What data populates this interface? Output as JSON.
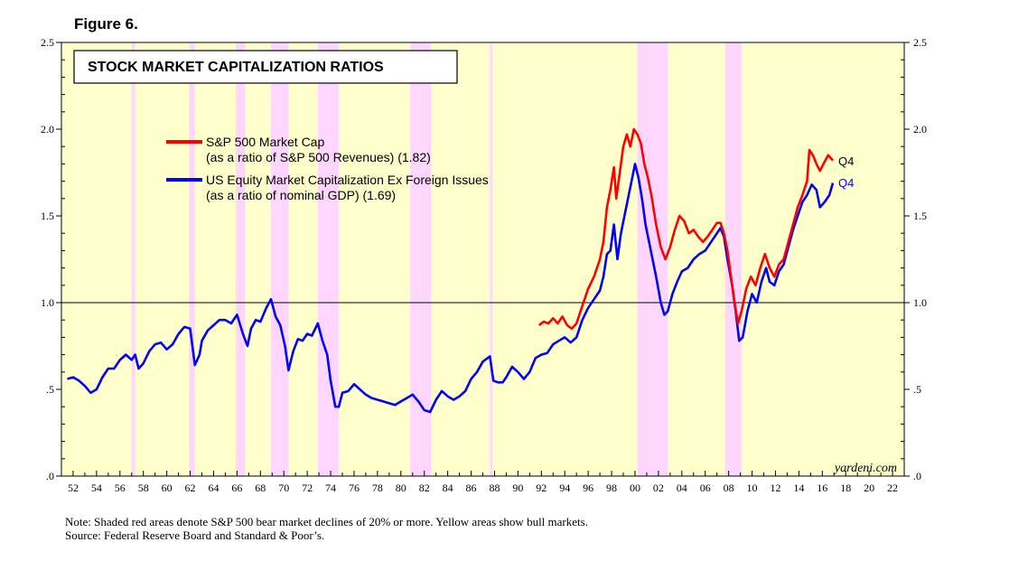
{
  "figure_label": "Figure 6.",
  "colors": {
    "background": "#ffffcc",
    "recession": "#ffd6ff",
    "sp500": "#ff0000",
    "equity": "#0000ff"
  },
  "notes": {
    "line1": "Note: Shaded red areas denote S&P 500 bear market declines of 20% or more. Yellow areas show bull markets.",
    "line2": "Source: Federal Reserve Board and Standard & Poor’s."
  },
  "chart_data": {
    "type": "line",
    "title": "STOCK MARKET CAPITALIZATION RATIOS",
    "watermark": "yardeni.com",
    "xlim": [
      1951,
      2023
    ],
    "ylim": [
      0,
      2.5
    ],
    "reference_line": 1.0,
    "y_ticks": [
      {
        "value": 0,
        "label": ".0"
      },
      {
        "value": 0.5,
        "label": ".5"
      },
      {
        "value": 1.0,
        "label": "1.0"
      },
      {
        "value": 1.5,
        "label": "1.5"
      },
      {
        "value": 2.0,
        "label": "2.0"
      },
      {
        "value": 2.5,
        "label": "2.5"
      }
    ],
    "x_tick_labels": [
      "52",
      "54",
      "56",
      "58",
      "60",
      "62",
      "64",
      "66",
      "68",
      "70",
      "72",
      "74",
      "76",
      "78",
      "80",
      "82",
      "84",
      "86",
      "88",
      "90",
      "92",
      "94",
      "96",
      "98",
      "00",
      "02",
      "04",
      "06",
      "08",
      "10",
      "12",
      "14",
      "16",
      "18",
      "20",
      "22"
    ],
    "bear_markets": [
      [
        1957.0,
        1957.3
      ],
      [
        1961.9,
        1962.4
      ],
      [
        1965.9,
        1966.7
      ],
      [
        1968.9,
        1970.4
      ],
      [
        1972.9,
        1974.7
      ],
      [
        1980.8,
        1982.6
      ],
      [
        1987.6,
        1987.8
      ],
      [
        2000.2,
        2002.8
      ],
      [
        2007.7,
        2009.1
      ]
    ],
    "legend": [
      {
        "name": "S&P 500 Market Cap",
        "detail": "(as a ratio of S&P 500 Revenues) (1.82)",
        "color": "#ff0000"
      },
      {
        "name": "US Equity Market Capitalization Ex Foreign Issues",
        "detail": "(as a ratio of nominal GDP) (1.69)",
        "color": "#0000ff"
      }
    ],
    "series": [
      {
        "name": "US Equity Market Capitalization Ex Foreign Issues",
        "end_label": "Q4",
        "color": "#0000ff",
        "points": [
          [
            1951.5,
            0.56
          ],
          [
            1952.0,
            0.57
          ],
          [
            1952.5,
            0.55
          ],
          [
            1953.0,
            0.52
          ],
          [
            1953.5,
            0.48
          ],
          [
            1954.0,
            0.5
          ],
          [
            1954.5,
            0.57
          ],
          [
            1955.0,
            0.62
          ],
          [
            1955.5,
            0.62
          ],
          [
            1956.0,
            0.67
          ],
          [
            1956.5,
            0.7
          ],
          [
            1957.0,
            0.67
          ],
          [
            1957.3,
            0.7
          ],
          [
            1957.6,
            0.62
          ],
          [
            1958.0,
            0.65
          ],
          [
            1958.5,
            0.72
          ],
          [
            1959.0,
            0.76
          ],
          [
            1959.5,
            0.77
          ],
          [
            1960.0,
            0.73
          ],
          [
            1960.5,
            0.76
          ],
          [
            1961.0,
            0.82
          ],
          [
            1961.5,
            0.86
          ],
          [
            1962.0,
            0.85
          ],
          [
            1962.4,
            0.64
          ],
          [
            1962.8,
            0.7
          ],
          [
            1963.0,
            0.78
          ],
          [
            1963.5,
            0.84
          ],
          [
            1964.0,
            0.87
          ],
          [
            1964.5,
            0.9
          ],
          [
            1965.0,
            0.9
          ],
          [
            1965.5,
            0.88
          ],
          [
            1966.0,
            0.93
          ],
          [
            1966.5,
            0.82
          ],
          [
            1966.9,
            0.75
          ],
          [
            1967.2,
            0.85
          ],
          [
            1967.6,
            0.9
          ],
          [
            1968.0,
            0.89
          ],
          [
            1968.5,
            0.97
          ],
          [
            1968.9,
            1.02
          ],
          [
            1969.3,
            0.92
          ],
          [
            1969.7,
            0.87
          ],
          [
            1970.1,
            0.75
          ],
          [
            1970.4,
            0.61
          ],
          [
            1970.8,
            0.72
          ],
          [
            1971.2,
            0.79
          ],
          [
            1971.6,
            0.78
          ],
          [
            1972.0,
            0.82
          ],
          [
            1972.4,
            0.81
          ],
          [
            1972.9,
            0.88
          ],
          [
            1973.3,
            0.78
          ],
          [
            1973.7,
            0.7
          ],
          [
            1974.0,
            0.55
          ],
          [
            1974.4,
            0.4
          ],
          [
            1974.7,
            0.4
          ],
          [
            1975.0,
            0.48
          ],
          [
            1975.5,
            0.49
          ],
          [
            1976.0,
            0.53
          ],
          [
            1976.5,
            0.5
          ],
          [
            1977.0,
            0.47
          ],
          [
            1977.5,
            0.45
          ],
          [
            1978.0,
            0.44
          ],
          [
            1978.5,
            0.43
          ],
          [
            1979.0,
            0.42
          ],
          [
            1979.5,
            0.41
          ],
          [
            1980.0,
            0.43
          ],
          [
            1980.5,
            0.45
          ],
          [
            1981.0,
            0.47
          ],
          [
            1981.5,
            0.43
          ],
          [
            1982.0,
            0.38
          ],
          [
            1982.5,
            0.37
          ],
          [
            1983.0,
            0.44
          ],
          [
            1983.5,
            0.49
          ],
          [
            1984.0,
            0.46
          ],
          [
            1984.5,
            0.44
          ],
          [
            1985.0,
            0.46
          ],
          [
            1985.5,
            0.49
          ],
          [
            1986.0,
            0.56
          ],
          [
            1986.5,
            0.6
          ],
          [
            1987.0,
            0.66
          ],
          [
            1987.6,
            0.69
          ],
          [
            1987.9,
            0.55
          ],
          [
            1988.3,
            0.54
          ],
          [
            1988.7,
            0.54
          ],
          [
            1989.0,
            0.57
          ],
          [
            1989.5,
            0.63
          ],
          [
            1990.0,
            0.6
          ],
          [
            1990.5,
            0.56
          ],
          [
            1991.0,
            0.6
          ],
          [
            1991.5,
            0.68
          ],
          [
            1992.0,
            0.7
          ],
          [
            1992.5,
            0.71
          ],
          [
            1993.0,
            0.76
          ],
          [
            1993.5,
            0.78
          ],
          [
            1994.0,
            0.8
          ],
          [
            1994.5,
            0.77
          ],
          [
            1995.0,
            0.8
          ],
          [
            1995.5,
            0.9
          ],
          [
            1996.0,
            0.97
          ],
          [
            1996.5,
            1.02
          ],
          [
            1997.0,
            1.07
          ],
          [
            1997.3,
            1.15
          ],
          [
            1997.6,
            1.28
          ],
          [
            1997.9,
            1.3
          ],
          [
            1998.2,
            1.45
          ],
          [
            1998.5,
            1.25
          ],
          [
            1998.8,
            1.4
          ],
          [
            1999.1,
            1.5
          ],
          [
            1999.4,
            1.6
          ],
          [
            1999.7,
            1.7
          ],
          [
            2000.0,
            1.8
          ],
          [
            2000.3,
            1.72
          ],
          [
            2000.6,
            1.6
          ],
          [
            2000.9,
            1.45
          ],
          [
            2001.2,
            1.35
          ],
          [
            2001.5,
            1.25
          ],
          [
            2001.8,
            1.15
          ],
          [
            2002.2,
            1.0
          ],
          [
            2002.5,
            0.93
          ],
          [
            2002.8,
            0.95
          ],
          [
            2003.2,
            1.05
          ],
          [
            2003.6,
            1.12
          ],
          [
            2004.0,
            1.18
          ],
          [
            2004.5,
            1.2
          ],
          [
            2005.0,
            1.25
          ],
          [
            2005.5,
            1.28
          ],
          [
            2006.0,
            1.3
          ],
          [
            2006.5,
            1.35
          ],
          [
            2007.0,
            1.4
          ],
          [
            2007.3,
            1.43
          ],
          [
            2007.6,
            1.38
          ],
          [
            2007.9,
            1.25
          ],
          [
            2008.3,
            1.1
          ],
          [
            2008.6,
            0.95
          ],
          [
            2008.9,
            0.78
          ],
          [
            2009.2,
            0.8
          ],
          [
            2009.6,
            0.95
          ],
          [
            2010.0,
            1.05
          ],
          [
            2010.4,
            1.0
          ],
          [
            2010.8,
            1.12
          ],
          [
            2011.2,
            1.2
          ],
          [
            2011.5,
            1.12
          ],
          [
            2011.9,
            1.1
          ],
          [
            2012.3,
            1.18
          ],
          [
            2012.7,
            1.22
          ],
          [
            2013.1,
            1.32
          ],
          [
            2013.5,
            1.42
          ],
          [
            2013.9,
            1.5
          ],
          [
            2014.3,
            1.58
          ],
          [
            2014.7,
            1.62
          ],
          [
            2015.1,
            1.68
          ],
          [
            2015.5,
            1.65
          ],
          [
            2015.8,
            1.55
          ],
          [
            2016.2,
            1.58
          ],
          [
            2016.6,
            1.62
          ],
          [
            2016.9,
            1.69
          ]
        ]
      },
      {
        "name": "S&P 500 Market Cap",
        "end_label": "Q4",
        "color": "#ff0000",
        "points": [
          [
            1991.8,
            0.87
          ],
          [
            1992.2,
            0.89
          ],
          [
            1992.6,
            0.88
          ],
          [
            1993.0,
            0.91
          ],
          [
            1993.4,
            0.88
          ],
          [
            1993.8,
            0.92
          ],
          [
            1994.2,
            0.87
          ],
          [
            1994.6,
            0.85
          ],
          [
            1995.0,
            0.88
          ],
          [
            1995.5,
            0.98
          ],
          [
            1996.0,
            1.08
          ],
          [
            1996.5,
            1.15
          ],
          [
            1997.0,
            1.25
          ],
          [
            1997.3,
            1.35
          ],
          [
            1997.6,
            1.55
          ],
          [
            1997.9,
            1.65
          ],
          [
            1998.2,
            1.78
          ],
          [
            1998.4,
            1.6
          ],
          [
            1998.7,
            1.75
          ],
          [
            1999.0,
            1.9
          ],
          [
            1999.3,
            1.97
          ],
          [
            1999.6,
            1.9
          ],
          [
            1999.9,
            2.0
          ],
          [
            2000.2,
            1.97
          ],
          [
            2000.5,
            1.92
          ],
          [
            2000.8,
            1.8
          ],
          [
            2001.1,
            1.72
          ],
          [
            2001.4,
            1.62
          ],
          [
            2001.8,
            1.45
          ],
          [
            2002.2,
            1.32
          ],
          [
            2002.6,
            1.25
          ],
          [
            2003.0,
            1.32
          ],
          [
            2003.4,
            1.42
          ],
          [
            2003.8,
            1.5
          ],
          [
            2004.2,
            1.47
          ],
          [
            2004.6,
            1.4
          ],
          [
            2005.0,
            1.42
          ],
          [
            2005.4,
            1.38
          ],
          [
            2005.8,
            1.35
          ],
          [
            2006.2,
            1.38
          ],
          [
            2006.6,
            1.42
          ],
          [
            2007.0,
            1.46
          ],
          [
            2007.3,
            1.46
          ],
          [
            2007.6,
            1.4
          ],
          [
            2007.9,
            1.3
          ],
          [
            2008.2,
            1.15
          ],
          [
            2008.5,
            1.0
          ],
          [
            2008.8,
            0.88
          ],
          [
            2009.1,
            0.95
          ],
          [
            2009.5,
            1.08
          ],
          [
            2009.9,
            1.15
          ],
          [
            2010.3,
            1.1
          ],
          [
            2010.7,
            1.2
          ],
          [
            2011.1,
            1.28
          ],
          [
            2011.5,
            1.2
          ],
          [
            2011.9,
            1.15
          ],
          [
            2012.3,
            1.22
          ],
          [
            2012.7,
            1.25
          ],
          [
            2013.1,
            1.35
          ],
          [
            2013.5,
            1.45
          ],
          [
            2013.9,
            1.55
          ],
          [
            2014.3,
            1.62
          ],
          [
            2014.7,
            1.7
          ],
          [
            2014.9,
            1.88
          ],
          [
            2015.2,
            1.85
          ],
          [
            2015.5,
            1.8
          ],
          [
            2015.8,
            1.76
          ],
          [
            2016.1,
            1.8
          ],
          [
            2016.5,
            1.85
          ],
          [
            2016.9,
            1.82
          ]
        ]
      }
    ]
  }
}
